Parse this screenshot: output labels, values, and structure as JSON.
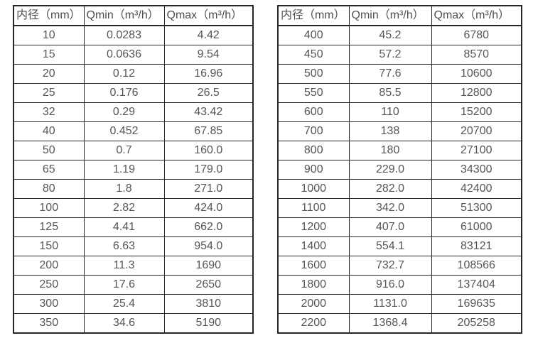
{
  "tables": [
    {
      "name": "flow-table-small-diameters",
      "headers": [
        "内径（mm）",
        "Qmin（m³/h）",
        "Qmax（m³/h）"
      ],
      "rows": [
        [
          "10",
          "0.0283",
          "4.42"
        ],
        [
          "15",
          "0.0636",
          "9.54"
        ],
        [
          "20",
          "0.12",
          "16.96"
        ],
        [
          "25",
          "0.176",
          "26.5"
        ],
        [
          "32",
          "0.29",
          "43.42"
        ],
        [
          "40",
          "0.452",
          "67.85"
        ],
        [
          "50",
          "0.7",
          "160.0"
        ],
        [
          "65",
          "1.19",
          "179.0"
        ],
        [
          "80",
          "1.8",
          "271.0"
        ],
        [
          "100",
          "2.82",
          "424.0"
        ],
        [
          "125",
          "4.41",
          "662.0"
        ],
        [
          "150",
          "6.63",
          "954.0"
        ],
        [
          "200",
          "11.3",
          "1690"
        ],
        [
          "250",
          "17.6",
          "2650"
        ],
        [
          "300",
          "25.4",
          "3810"
        ],
        [
          "350",
          "34.6",
          "5190"
        ]
      ]
    },
    {
      "name": "flow-table-large-diameters",
      "headers": [
        "内径（mm）",
        "Qmin（m³/h）",
        "Qmax（m³/h）"
      ],
      "rows": [
        [
          "400",
          "45.2",
          "6780"
        ],
        [
          "450",
          "57.2",
          "8570"
        ],
        [
          "500",
          "77.6",
          "10600"
        ],
        [
          "550",
          "85.5",
          "12800"
        ],
        [
          "600",
          "110",
          "15200"
        ],
        [
          "700",
          "138",
          "20700"
        ],
        [
          "800",
          "180",
          "27100"
        ],
        [
          "900",
          "229.0",
          "34300"
        ],
        [
          "1000",
          "282.0",
          "42400"
        ],
        [
          "1100",
          "342.0",
          "51300"
        ],
        [
          "1200",
          "407.0",
          "61000"
        ],
        [
          "1400",
          "554.1",
          "83121"
        ],
        [
          "1600",
          "732.7",
          "108566"
        ],
        [
          "1800",
          "916.0",
          "137404"
        ],
        [
          "2000",
          "1131.0",
          "169635"
        ],
        [
          "2200",
          "1368.4",
          "205258"
        ]
      ]
    }
  ],
  "colors": {
    "border": "#262626",
    "text": "#565656",
    "background": "#ffffff"
  }
}
